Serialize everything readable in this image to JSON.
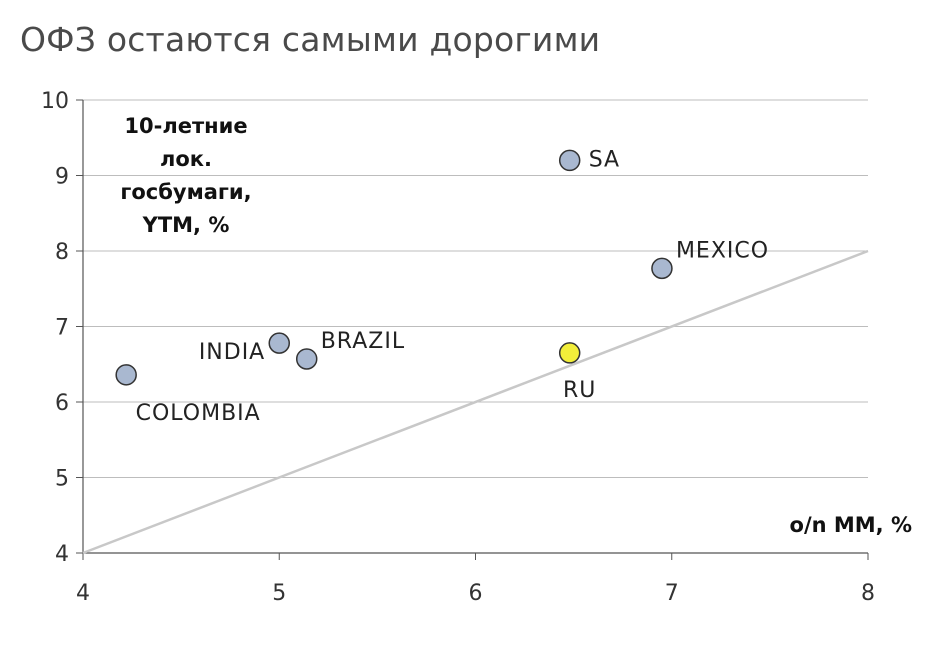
{
  "title": "ОФЗ остаются самыми дорогими",
  "chart_data": {
    "type": "scatter",
    "xlim": [
      4,
      8
    ],
    "ylim": [
      4,
      10
    ],
    "x_ticks": [
      4,
      5,
      6,
      7,
      8
    ],
    "y_ticks": [
      4,
      5,
      6,
      7,
      8,
      9,
      10
    ],
    "xlabel": "o/n MM, %",
    "ylabel_lines": [
      "10-летние",
      "лок.",
      "госбумаги,",
      "YTM, %"
    ],
    "grid": "horizontal",
    "reference_line": {
      "from": [
        4,
        4
      ],
      "to": [
        8,
        8
      ],
      "color": "#c8c8c8"
    },
    "points": [
      {
        "label": "SA",
        "x": 6.48,
        "y": 9.2,
        "color": "#a9b8d0"
      },
      {
        "label": "MEXICO",
        "x": 6.95,
        "y": 7.77,
        "color": "#a9b8d0"
      },
      {
        "label": "INDIA",
        "x": 5.0,
        "y": 6.78,
        "color": "#a9b8d0"
      },
      {
        "label": "BRAZIL",
        "x": 5.14,
        "y": 6.57,
        "color": "#a9b8d0"
      },
      {
        "label": "RU",
        "x": 6.48,
        "y": 6.65,
        "color": "#f2ee3a"
      },
      {
        "label": "COLOMBIA",
        "x": 4.22,
        "y": 6.36,
        "color": "#a9b8d0"
      }
    ]
  }
}
